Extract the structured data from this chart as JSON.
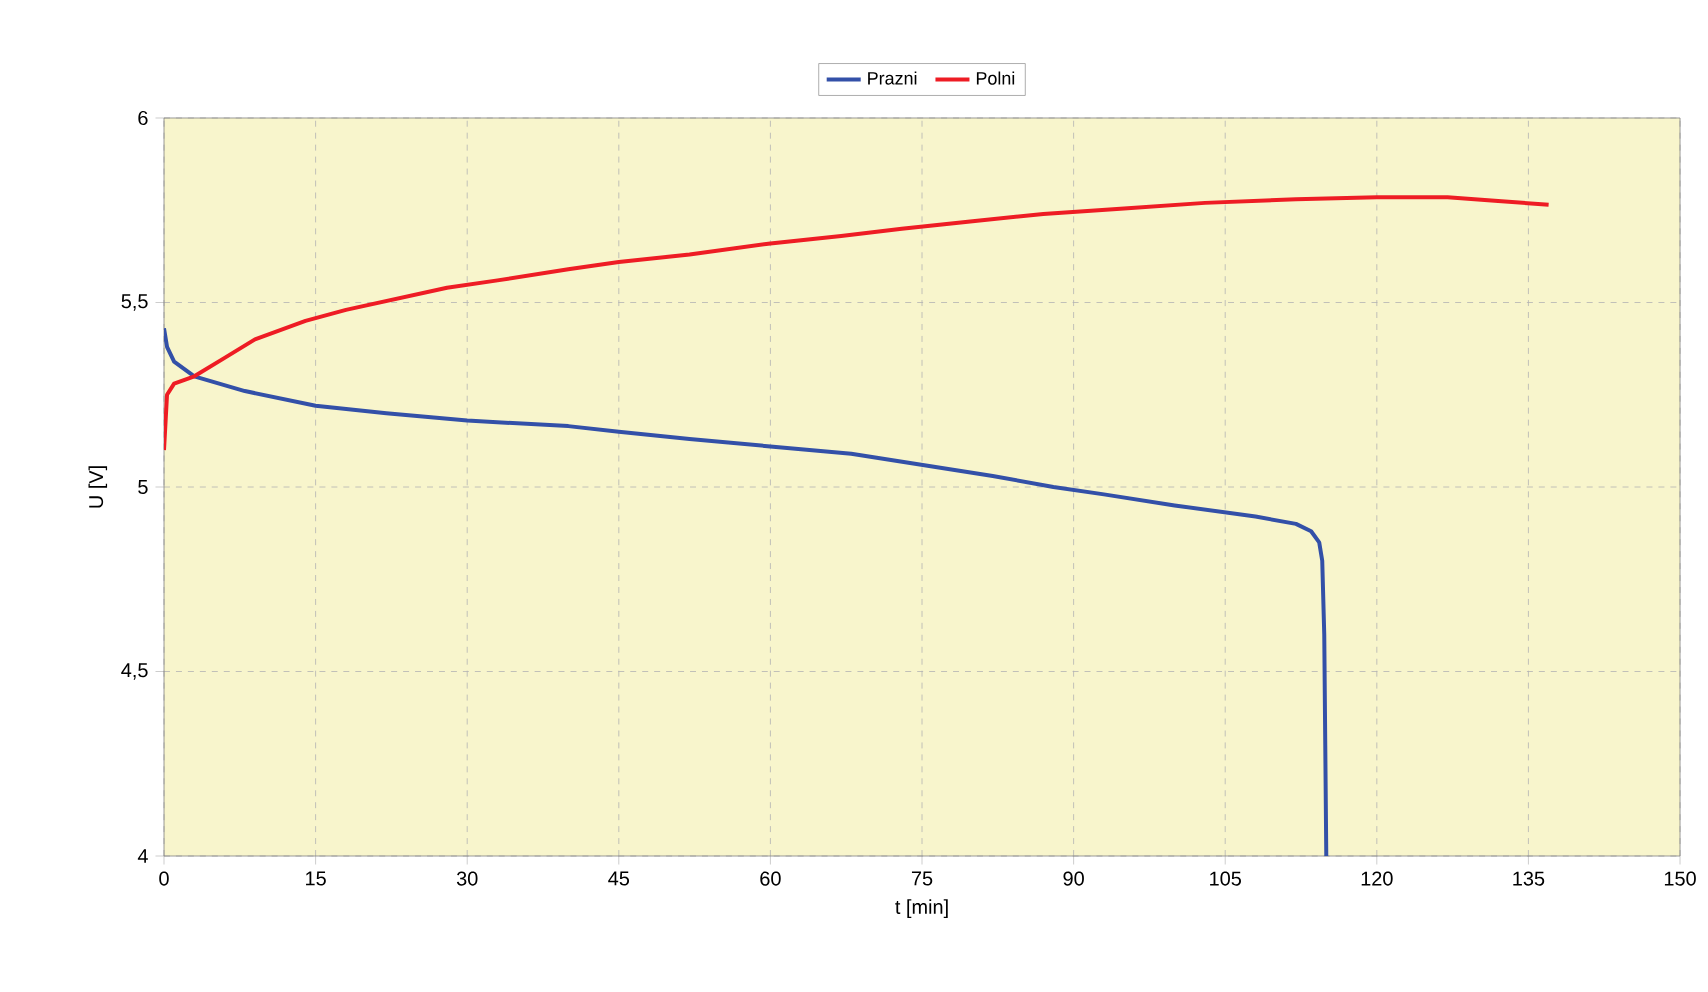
{
  "chart_data": {
    "type": "line",
    "xlabel": "t [min]",
    "ylabel": "U [V]",
    "xlim": [
      0,
      150
    ],
    "ylim": [
      4,
      6
    ],
    "xticks": [
      0,
      15,
      30,
      45,
      60,
      75,
      90,
      105,
      120,
      135,
      150
    ],
    "yticks": [
      {
        "value": 4,
        "label": "4"
      },
      {
        "value": 4.5,
        "label": "4,5"
      },
      {
        "value": 5,
        "label": "5"
      },
      {
        "value": 5.5,
        "label": "5,5"
      },
      {
        "value": 6,
        "label": "6"
      }
    ],
    "grid": true,
    "legend": "top",
    "series": [
      {
        "name": "Prazni",
        "color": "#3350a8",
        "x": [
          0,
          0.3,
          1,
          3,
          8,
          15,
          22,
          30,
          40,
          45,
          52,
          60,
          68,
          75,
          82,
          88,
          93,
          100,
          108,
          112,
          113.5,
          114.3,
          114.6,
          114.8,
          114.9,
          115
        ],
        "values": [
          5.43,
          5.38,
          5.34,
          5.3,
          5.26,
          5.22,
          5.2,
          5.18,
          5.165,
          5.15,
          5.13,
          5.11,
          5.09,
          5.06,
          5.03,
          5.0,
          4.98,
          4.95,
          4.92,
          4.9,
          4.88,
          4.85,
          4.8,
          4.6,
          4.3,
          4.0
        ]
      },
      {
        "name": "Polni",
        "color": "#ee1c24",
        "x": [
          0,
          0.3,
          1,
          3,
          6,
          9,
          14,
          18,
          23,
          28,
          33,
          40,
          45,
          52,
          60,
          67,
          73,
          80,
          87,
          95,
          103,
          112,
          120,
          127,
          132,
          137
        ],
        "values": [
          5.1,
          5.25,
          5.28,
          5.3,
          5.35,
          5.4,
          5.45,
          5.48,
          5.51,
          5.54,
          5.56,
          5.59,
          5.61,
          5.63,
          5.66,
          5.68,
          5.7,
          5.72,
          5.74,
          5.755,
          5.77,
          5.78,
          5.785,
          5.785,
          5.775,
          5.765
        ]
      }
    ]
  }
}
